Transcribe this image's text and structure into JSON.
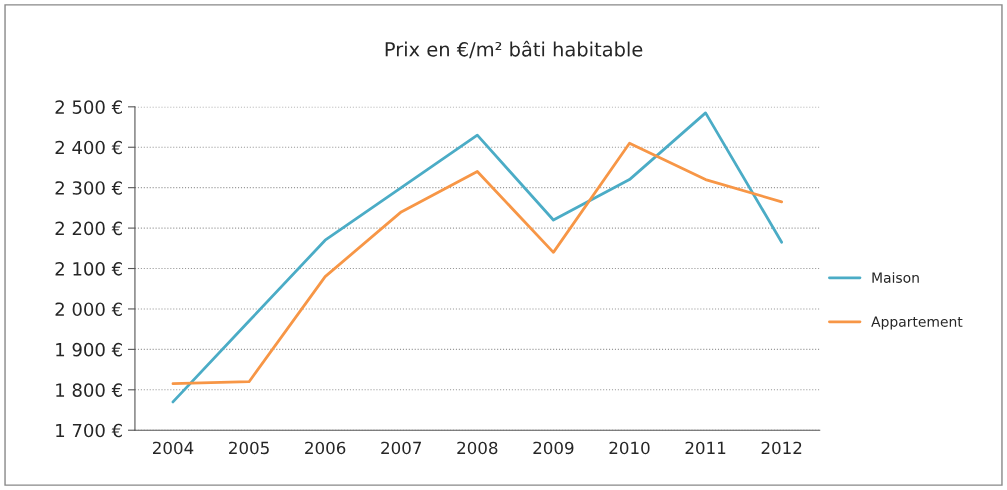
{
  "chart_data": {
    "type": "line",
    "title": "Prix en €/m² bâti habitable",
    "categories": [
      "2004",
      "2005",
      "2006",
      "2007",
      "2008",
      "2009",
      "2010",
      "2011",
      "2012"
    ],
    "series": [
      {
        "name": "Maison",
        "color": "#4bacc6",
        "values": [
          1770,
          1970,
          2170,
          2300,
          2430,
          2220,
          2320,
          2485,
          2165
        ]
      },
      {
        "name": "Appartement",
        "color": "#f79646",
        "values": [
          1815,
          1820,
          2080,
          2240,
          2340,
          2140,
          2410,
          2320,
          2265
        ]
      }
    ],
    "ylim": [
      1700,
      2500
    ],
    "yticks": [
      {
        "value": 1700,
        "label": "1 700 €"
      },
      {
        "value": 1800,
        "label": "1 800 €"
      },
      {
        "value": 1900,
        "label": "1 900 €"
      },
      {
        "value": 2000,
        "label": "2 000 €"
      },
      {
        "value": 2100,
        "label": "2 100 €"
      },
      {
        "value": 2200,
        "label": "2 200 €"
      },
      {
        "value": 2300,
        "label": "2 300 €"
      },
      {
        "value": 2400,
        "label": "2 400 €"
      },
      {
        "value": 2500,
        "label": "2 500 €"
      }
    ],
    "grid": "y",
    "legend": "right",
    "marker": "none",
    "line_style": "solid"
  }
}
